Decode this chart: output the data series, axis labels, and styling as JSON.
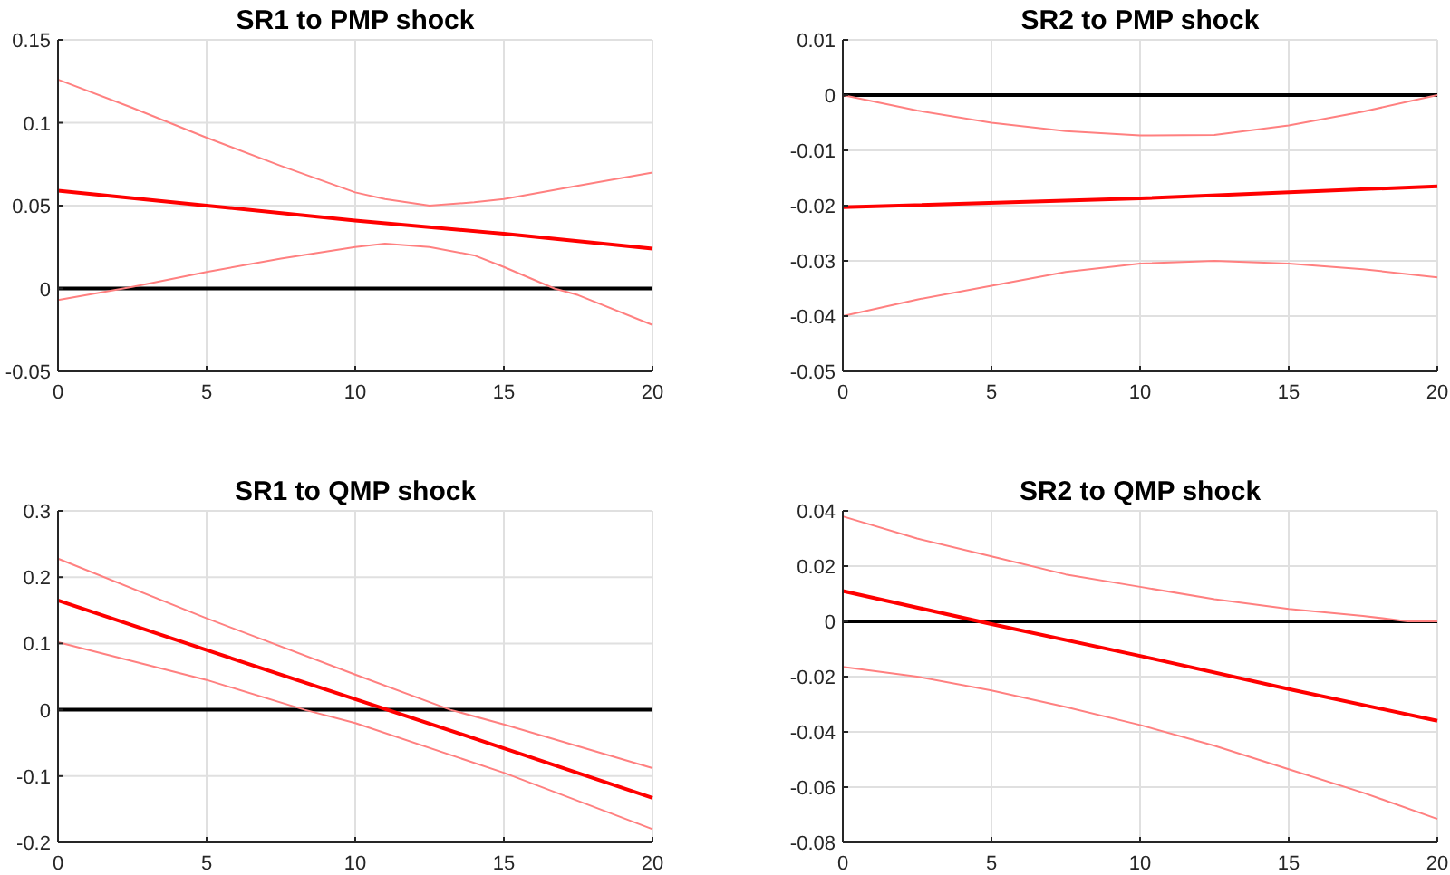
{
  "chart_data": [
    {
      "type": "line",
      "title": "SR1 to PMP shock",
      "xlim": [
        0,
        20
      ],
      "xticks": [
        0,
        5,
        10,
        15,
        20
      ],
      "ylim": [
        -0.05,
        0.15
      ],
      "yticks": [
        -0.05,
        0,
        0.05,
        0.1,
        0.15
      ],
      "grid": true,
      "ref_lines": [
        {
          "axis": "y",
          "value": 0,
          "color": "#000000"
        }
      ],
      "series": [
        {
          "color": "#ff8080",
          "x": [
            0,
            2.5,
            5,
            7.5,
            10,
            11,
            12.5,
            14,
            15,
            17.5,
            20
          ],
          "values": [
            0.126,
            0.109,
            0.091,
            0.074,
            0.058,
            0.054,
            0.05,
            0.052,
            0.054,
            0.062,
            0.07
          ]
        },
        {
          "color": "#ff0000",
          "x": [
            0,
            5,
            10,
            15,
            20
          ],
          "values": [
            0.059,
            0.05,
            0.041,
            0.033,
            0.024
          ]
        },
        {
          "color": "#ff8080",
          "x": [
            0,
            2.5,
            5,
            7.5,
            10,
            11,
            12.5,
            14,
            15,
            16.7,
            17.5,
            20
          ],
          "values": [
            -0.007,
            0.001,
            0.01,
            0.018,
            0.025,
            0.027,
            0.025,
            0.02,
            0.013,
            0,
            -0.004,
            -0.022
          ]
        }
      ]
    },
    {
      "type": "line",
      "title": "SR2 to PMP shock",
      "xlim": [
        0,
        20
      ],
      "xticks": [
        0,
        5,
        10,
        15,
        20
      ],
      "ylim": [
        -0.05,
        0.01
      ],
      "yticks": [
        -0.05,
        -0.04,
        -0.03,
        -0.02,
        -0.01,
        0,
        0.01
      ],
      "grid": true,
      "ref_lines": [
        {
          "axis": "y",
          "value": 0,
          "color": "#000000"
        }
      ],
      "series": [
        {
          "color": "#ff8080",
          "x": [
            0,
            2.5,
            5,
            7.5,
            10,
            12.5,
            15,
            17.5,
            20
          ],
          "values": [
            0,
            -0.0028,
            -0.005,
            -0.0065,
            -0.0073,
            -0.0072,
            -0.0055,
            -0.003,
            0
          ]
        },
        {
          "color": "#ff0000",
          "x": [
            0,
            10,
            20
          ],
          "values": [
            -0.0203,
            -0.0187,
            -0.0165
          ]
        },
        {
          "color": "#ff8080",
          "x": [
            0,
            2.5,
            5,
            7.5,
            10,
            12.5,
            15,
            17.5,
            20
          ],
          "values": [
            -0.04,
            -0.037,
            -0.0345,
            -0.032,
            -0.0305,
            -0.03,
            -0.0305,
            -0.0315,
            -0.033
          ]
        }
      ]
    },
    {
      "type": "line",
      "title": "SR1 to QMP shock",
      "xlim": [
        0,
        20
      ],
      "xticks": [
        0,
        5,
        10,
        15,
        20
      ],
      "ylim": [
        -0.2,
        0.3
      ],
      "yticks": [
        -0.2,
        -0.1,
        0,
        0.1,
        0.2,
        0.3
      ],
      "grid": true,
      "ref_lines": [
        {
          "axis": "y",
          "value": 0,
          "color": "#000000"
        }
      ],
      "series": [
        {
          "color": "#ff8080",
          "x": [
            0,
            5,
            10,
            13.2,
            15,
            20
          ],
          "values": [
            0.228,
            0.138,
            0.053,
            0,
            -0.022,
            -0.088
          ]
        },
        {
          "color": "#ff0000",
          "x": [
            0,
            5,
            10,
            15,
            20
          ],
          "values": [
            0.165,
            0.09,
            0.016,
            -0.058,
            -0.133
          ]
        },
        {
          "color": "#ff8080",
          "x": [
            0,
            5,
            8.3,
            10,
            15,
            20
          ],
          "values": [
            0.102,
            0.045,
            0,
            -0.02,
            -0.095,
            -0.18
          ]
        }
      ]
    },
    {
      "type": "line",
      "title": "SR2 to QMP shock",
      "xlim": [
        0,
        20
      ],
      "xticks": [
        0,
        5,
        10,
        15,
        20
      ],
      "ylim": [
        -0.08,
        0.04
      ],
      "yticks": [
        -0.08,
        -0.06,
        -0.04,
        -0.02,
        0,
        0.02,
        0.04
      ],
      "grid": true,
      "ref_lines": [
        {
          "axis": "y",
          "value": 0,
          "color": "#000000"
        }
      ],
      "series": [
        {
          "color": "#ff8080",
          "x": [
            0,
            2.5,
            5,
            7.5,
            10,
            12.5,
            15,
            17.5,
            19,
            20
          ],
          "values": [
            0.038,
            0.03,
            0.0235,
            0.017,
            0.0125,
            0.008,
            0.0045,
            0.002,
            0,
            0
          ]
        },
        {
          "color": "#ff0000",
          "x": [
            0,
            5,
            10,
            15,
            20
          ],
          "values": [
            0.011,
            -0.001,
            -0.0125,
            -0.0245,
            -0.036
          ]
        },
        {
          "color": "#ff8080",
          "x": [
            0,
            2.5,
            5,
            7.5,
            10,
            12.5,
            15,
            17.5,
            20
          ],
          "values": [
            -0.0165,
            -0.02,
            -0.025,
            -0.031,
            -0.0375,
            -0.045,
            -0.0535,
            -0.062,
            -0.0715
          ]
        }
      ]
    }
  ]
}
